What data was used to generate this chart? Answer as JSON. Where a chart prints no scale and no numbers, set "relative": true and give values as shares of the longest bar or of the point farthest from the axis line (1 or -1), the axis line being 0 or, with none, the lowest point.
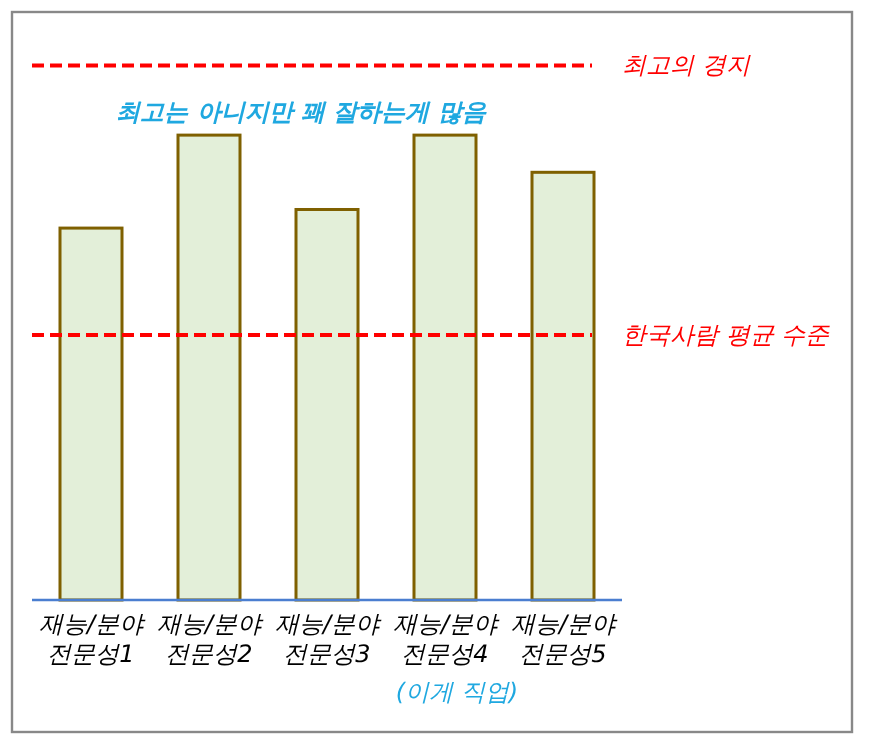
{
  "chart_data": {
    "type": "bar",
    "relative": true,
    "categories": [
      "재능/분야\n전문성1",
      "재능/분야\n전문성2",
      "재능/분야\n전문성3",
      "재능/분야\n전문성4",
      "재능/분야\n전문성5"
    ],
    "values": [
      0.8,
      1,
      0.84,
      1,
      0.92
    ],
    "color": "#e3efd9",
    "xlabel": "(이게 직업)",
    "annotations": [
      "최고는 아니지만 꽤 잘하는게 많음"
    ],
    "ref_lines": [
      {
        "axis": "y",
        "value": 1.15,
        "label": "최고의 경지",
        "color": "#ff0000",
        "line_style": "dashed"
      },
      {
        "axis": "y",
        "value": 0.57,
        "label": "한국사람 평균 수준",
        "color": "#ff0000",
        "line_style": "dashed"
      }
    ]
  }
}
